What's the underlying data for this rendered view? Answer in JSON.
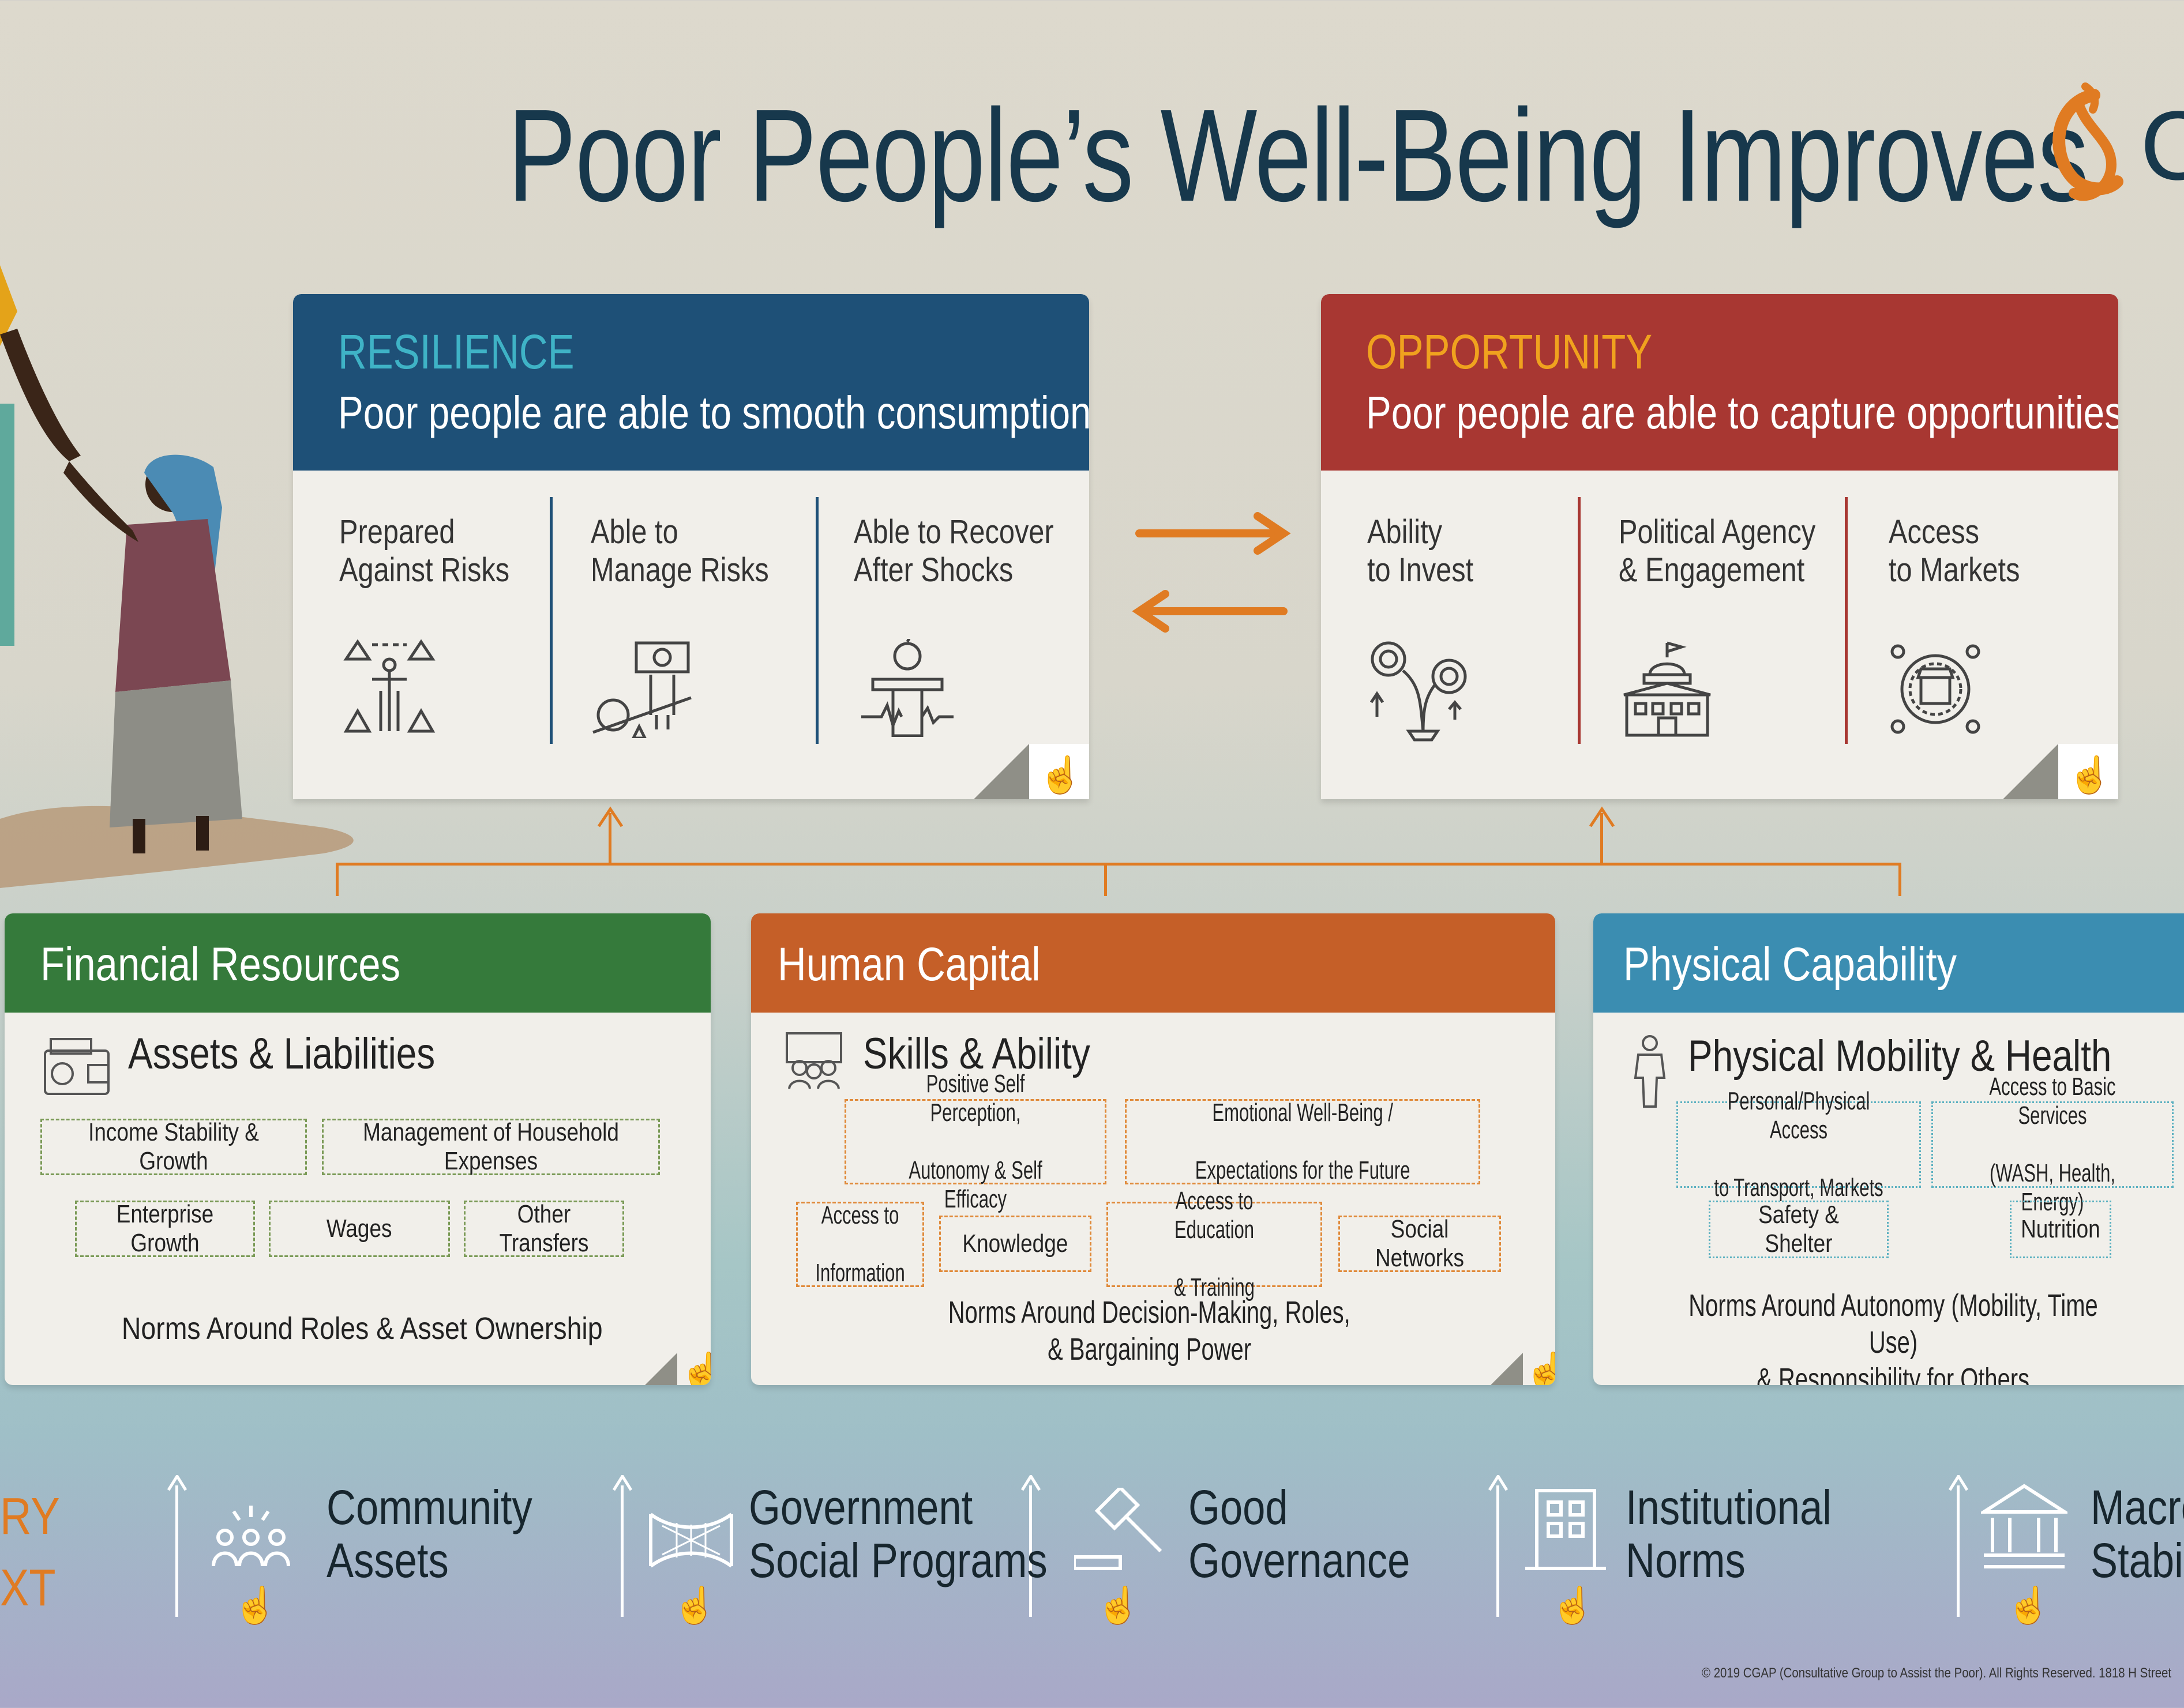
{
  "title": "Poor People’s Well-Being Improves",
  "logo": {
    "letter": "C"
  },
  "resilience": {
    "kicker": "RESILIENCE",
    "subtitle": "Poor people are able to smooth consumption",
    "items": [
      {
        "line1": "Prepared",
        "line2": "Against Risks",
        "icon": "risk-balance-icon"
      },
      {
        "line1": "Able to",
        "line2": "Manage Risks",
        "icon": "money-scale-icon"
      },
      {
        "line1": "Able to Recover",
        "line2": "After Shocks",
        "icon": "recovery-icon"
      }
    ]
  },
  "opportunity": {
    "kicker": "OPPORTUNITY",
    "subtitle": "Poor people are able to capture opportunities",
    "items": [
      {
        "line1": "Ability",
        "line2": "to Invest",
        "icon": "investment-growth-icon"
      },
      {
        "line1": "Political Agency",
        "line2": "& Engagement",
        "icon": "government-building-icon"
      },
      {
        "line1": "Access",
        "line2": "to Markets",
        "icon": "market-access-icon"
      }
    ]
  },
  "financial": {
    "title": "Financial Resources",
    "subtitle": "Assets & Liabilities",
    "chips": [
      "Income Stability & Growth",
      "Management of Household Expenses",
      "Enterprise Growth",
      "Wages",
      "Other Transfers"
    ],
    "norm": "Norms Around Roles & Asset Ownership"
  },
  "human": {
    "title": "Human Capital",
    "subtitle": "Skills & Ability",
    "chips": [
      {
        "l1": "Positive Self Perception,",
        "l2": "Autonomy & Self Efficacy"
      },
      {
        "l1": "Emotional Well-Being /",
        "l2": "Expectations for the Future"
      },
      {
        "l1": "Access to",
        "l2": "Information"
      },
      {
        "l1": "Knowledge",
        "l2": ""
      },
      {
        "l1": "Access to Education",
        "l2": "& Training"
      },
      {
        "l1": "Social Networks",
        "l2": ""
      }
    ],
    "norm_l1": "Norms Around Decision-Making, Roles,",
    "norm_l2": "& Bargaining  Power"
  },
  "physical": {
    "title": "Physical Capability",
    "subtitle": "Physical Mobility & Health",
    "chips": [
      {
        "l1": "Personal/Physical Access",
        "l2": "to Transport, Markets"
      },
      {
        "l1": "Access to Basic Services",
        "l2": "(WASH, Health, Energy)"
      },
      {
        "l1": "Safety & Shelter",
        "l2": ""
      },
      {
        "l1": "Nutrition",
        "l2": ""
      }
    ],
    "norm_l1": "Norms Around Autonomy (Mobility, Time Use)",
    "norm_l2": "& Responsibility for Others"
  },
  "context": {
    "left_l1": "RY",
    "left_l2": "XT",
    "items": [
      {
        "l1": "Community",
        "l2": "Assets",
        "icon": "community-icon"
      },
      {
        "l1": "Government",
        "l2": "Social Programs",
        "icon": "safety-net-icon"
      },
      {
        "l1": "Good",
        "l2": "Governance",
        "icon": "gavel-icon"
      },
      {
        "l1": "Institutional",
        "l2": "Norms",
        "icon": "building-icon"
      },
      {
        "l1": "Macro",
        "l2": "Stabil",
        "icon": "bank-icon"
      }
    ]
  },
  "copyright": "© 2019 CGAP (Consultative Group to Assist the Poor). All Rights Reserved. 1818 H Street",
  "colors": {
    "resilience": "#1e5077",
    "opportunity": "#a83732",
    "financial": "#357a3b",
    "human": "#c55f28",
    "physical": "#3b8db1",
    "accent": "#e07b22"
  }
}
